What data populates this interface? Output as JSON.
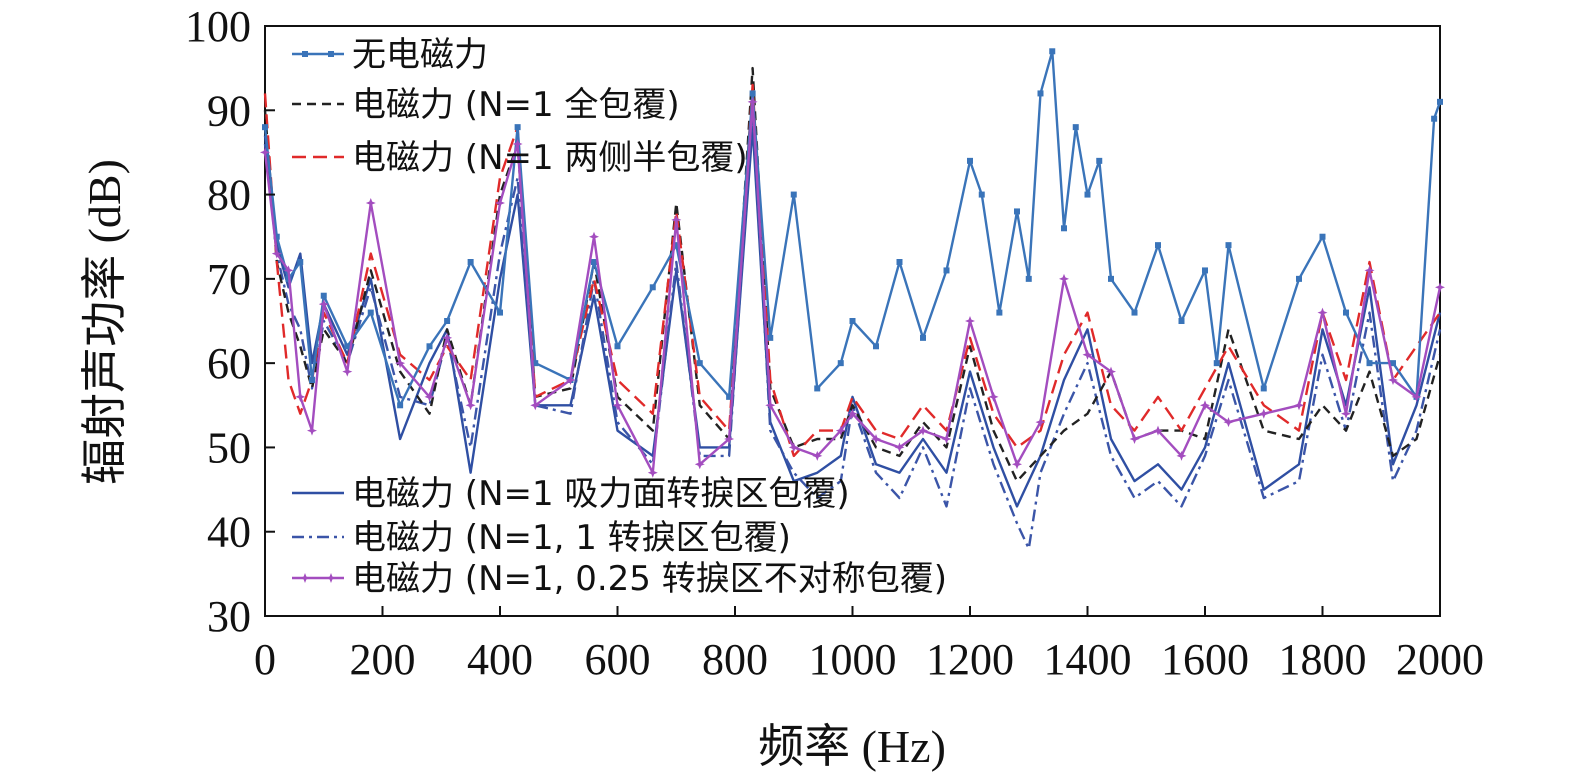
{
  "chart_data": {
    "type": "line",
    "title": "",
    "xlabel": "频率 (Hz)",
    "ylabel": "辐射声功率 (dB)",
    "xlim": [
      0,
      2000
    ],
    "ylim": [
      30,
      100
    ],
    "x_ticks": [
      "0",
      "200",
      "400",
      "600",
      "800",
      "1000",
      "1200",
      "1400",
      "1600",
      "1800",
      "2000"
    ],
    "y_ticks": [
      "30",
      "40",
      "50",
      "60",
      "70",
      "80",
      "90",
      "100"
    ],
    "grid": false,
    "legend_placement": "top-left and bottom-left",
    "series": [
      {
        "name": "无电磁力",
        "color": "#3a74b9",
        "style": "solid-square-markers",
        "x": [
          0,
          20,
          40,
          60,
          80,
          100,
          140,
          180,
          230,
          280,
          310,
          350,
          400,
          430,
          460,
          520,
          560,
          600,
          660,
          700,
          740,
          790,
          830,
          860,
          900,
          940,
          980,
          1000,
          1040,
          1080,
          1120,
          1160,
          1200,
          1220,
          1250,
          1280,
          1300,
          1320,
          1340,
          1360,
          1380,
          1400,
          1420,
          1440,
          1480,
          1520,
          1560,
          1600,
          1620,
          1640,
          1700,
          1760,
          1800,
          1840,
          1880,
          1920,
          1960,
          1990,
          2000
        ],
        "y": [
          88,
          75,
          70,
          72,
          58,
          68,
          62,
          66,
          55,
          62,
          65,
          72,
          66,
          88,
          60,
          58,
          72,
          62,
          69,
          74,
          60,
          56,
          92,
          63,
          80,
          57,
          60,
          65,
          62,
          72,
          63,
          71,
          84,
          80,
          66,
          78,
          70,
          92,
          97,
          76,
          88,
          80,
          84,
          70,
          66,
          74,
          65,
          71,
          60,
          74,
          57,
          70,
          75,
          66,
          60,
          60,
          56,
          89,
          91
        ]
      },
      {
        "name": "电磁力 (N=1 全包覆)",
        "color": "#222222",
        "style": "dashed",
        "x": [
          0,
          20,
          40,
          60,
          80,
          100,
          140,
          180,
          230,
          280,
          310,
          350,
          400,
          430,
          460,
          520,
          560,
          600,
          660,
          700,
          740,
          790,
          830,
          860,
          900,
          940,
          980,
          1000,
          1040,
          1080,
          1120,
          1160,
          1200,
          1240,
          1280,
          1320,
          1360,
          1400,
          1440,
          1480,
          1520,
          1560,
          1600,
          1640,
          1700,
          1760,
          1800,
          1840,
          1880,
          1920,
          1960,
          2000
        ],
        "y": [
          90,
          72,
          66,
          62,
          57,
          64,
          60,
          71,
          59,
          54,
          64,
          55,
          80,
          86,
          56,
          57,
          72,
          56,
          52,
          79,
          55,
          51,
          95,
          57,
          50,
          51,
          51,
          55,
          50,
          49,
          53,
          50,
          62,
          52,
          46,
          49,
          52,
          54,
          59,
          51,
          52,
          52,
          51,
          64,
          52,
          51,
          55,
          52,
          59,
          49,
          51,
          61
        ]
      },
      {
        "name": "电磁力 (N=1 两侧半包覆)",
        "color": "#e02a2a",
        "style": "long-dash",
        "x": [
          0,
          20,
          40,
          60,
          80,
          100,
          140,
          180,
          230,
          280,
          310,
          350,
          400,
          430,
          460,
          520,
          560,
          600,
          660,
          700,
          740,
          790,
          830,
          860,
          900,
          940,
          980,
          1000,
          1040,
          1080,
          1120,
          1160,
          1200,
          1240,
          1280,
          1320,
          1360,
          1400,
          1440,
          1480,
          1520,
          1560,
          1600,
          1640,
          1700,
          1760,
          1800,
          1840,
          1880,
          1920,
          1960,
          2000
        ],
        "y": [
          92,
          72,
          58,
          54,
          58,
          66,
          60,
          73,
          61,
          58,
          62,
          58,
          82,
          88,
          56,
          58,
          70,
          58,
          54,
          78,
          56,
          52,
          93,
          58,
          49,
          52,
          52,
          56,
          52,
          51,
          55,
          52,
          63,
          54,
          50,
          52,
          61,
          66,
          55,
          52,
          56,
          52,
          57,
          62,
          55,
          52,
          66,
          58,
          72,
          58,
          62,
          66
        ]
      },
      {
        "name": "电磁力 (N=1 吸力面转捩区包覆)",
        "color": "#2f4fa3",
        "style": "solid",
        "x": [
          0,
          20,
          40,
          60,
          80,
          100,
          140,
          180,
          230,
          280,
          310,
          350,
          400,
          430,
          460,
          520,
          560,
          600,
          660,
          700,
          740,
          790,
          830,
          860,
          900,
          940,
          980,
          1000,
          1040,
          1080,
          1120,
          1160,
          1200,
          1240,
          1280,
          1320,
          1360,
          1400,
          1440,
          1480,
          1520,
          1560,
          1600,
          1640,
          1700,
          1760,
          1800,
          1840,
          1880,
          1920,
          1960,
          2000
        ],
        "y": [
          87,
          74,
          69,
          73,
          60,
          67,
          61,
          70,
          51,
          60,
          64,
          47,
          70,
          80,
          55,
          55,
          68,
          52,
          49,
          71,
          50,
          50,
          88,
          53,
          46,
          47,
          49,
          56,
          48,
          47,
          51,
          47,
          59,
          50,
          43,
          49,
          58,
          64,
          51,
          46,
          48,
          45,
          50,
          60,
          45,
          48,
          64,
          55,
          69,
          48,
          55,
          66
        ]
      },
      {
        "name": "电磁力 (N=1, 1 转捩区包覆)",
        "color": "#3b55a8",
        "style": "dash-dot",
        "x": [
          0,
          20,
          40,
          60,
          80,
          100,
          140,
          180,
          230,
          280,
          310,
          350,
          400,
          430,
          460,
          520,
          560,
          600,
          660,
          700,
          740,
          790,
          830,
          860,
          900,
          940,
          980,
          1000,
          1040,
          1080,
          1120,
          1160,
          1200,
          1240,
          1280,
          1300,
          1320,
          1360,
          1400,
          1440,
          1480,
          1520,
          1560,
          1600,
          1640,
          1700,
          1760,
          1800,
          1840,
          1880,
          1920,
          1960,
          2000
        ],
        "y": [
          86,
          73,
          67,
          64,
          57,
          65,
          60,
          69,
          56,
          55,
          63,
          50,
          73,
          82,
          55,
          54,
          70,
          53,
          48,
          72,
          49,
          49,
          90,
          52,
          47,
          44,
          46,
          55,
          47,
          44,
          50,
          43,
          57,
          48,
          41,
          38,
          47,
          54,
          60,
          49,
          44,
          46,
          43,
          49,
          58,
          44,
          46,
          61,
          52,
          66,
          46,
          52,
          64
        ]
      },
      {
        "name": "电磁力 (N=1, 0.25 转捩区不对称包覆)",
        "color": "#a34dbf",
        "style": "solid-star-markers",
        "x": [
          0,
          20,
          40,
          60,
          80,
          100,
          140,
          180,
          230,
          280,
          310,
          350,
          400,
          430,
          460,
          520,
          560,
          600,
          660,
          700,
          740,
          790,
          830,
          860,
          900,
          940,
          980,
          1000,
          1040,
          1080,
          1120,
          1160,
          1200,
          1240,
          1280,
          1320,
          1360,
          1400,
          1440,
          1480,
          1520,
          1560,
          1600,
          1640,
          1700,
          1760,
          1800,
          1840,
          1880,
          1920,
          1960,
          2000
        ],
        "y": [
          85,
          73,
          71,
          56,
          52,
          67,
          59,
          79,
          60,
          56,
          63,
          55,
          79,
          86,
          55,
          58,
          75,
          55,
          47,
          77,
          48,
          51,
          91,
          55,
          50,
          49,
          52,
          54,
          51,
          50,
          52,
          51,
          65,
          56,
          48,
          53,
          70,
          61,
          59,
          51,
          52,
          49,
          55,
          53,
          54,
          55,
          66,
          54,
          71,
          58,
          56,
          69
        ]
      }
    ]
  }
}
